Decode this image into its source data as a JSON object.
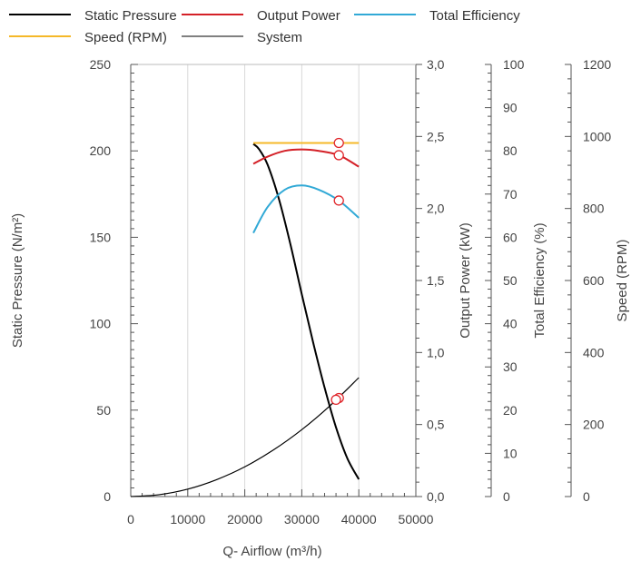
{
  "chart_data": {
    "type": "line",
    "legend": [
      {
        "label": "Static Pressure",
        "color": "#000000"
      },
      {
        "label": "Output Power",
        "color": "#d42027"
      },
      {
        "label": "Total Efficiency",
        "color": "#31a9d6"
      },
      {
        "label": "Speed (RPM)",
        "color": "#f5b829"
      },
      {
        "label": "System",
        "color": "#000000"
      }
    ],
    "legend_placement": "top",
    "grid": "vertical",
    "xlabel": "Q- Airflow (m³/h)",
    "xlim": [
      0,
      50000
    ],
    "x_ticks": [
      "0",
      "10000",
      "20000",
      "30000",
      "40000",
      "50000"
    ],
    "axes": {
      "static_pressure": {
        "label": "Static Pressure (N/m²)",
        "lim": [
          0,
          250
        ],
        "ticks": [
          "0",
          "50",
          "100",
          "150",
          "200",
          "250"
        ]
      },
      "output_power": {
        "label": "Output Power (kW)",
        "lim": [
          0,
          3
        ],
        "ticks": [
          "0,0",
          "0,5",
          "1,0",
          "1,5",
          "2,0",
          "2,5",
          "3,0"
        ]
      },
      "total_efficiency": {
        "label": "Total Efficiency (%)",
        "lim": [
          0,
          100
        ],
        "ticks": [
          "0",
          "10",
          "20",
          "30",
          "40",
          "50",
          "60",
          "70",
          "80",
          "90",
          "100"
        ]
      },
      "speed": {
        "label": "Speed (RPM)",
        "lim": [
          0,
          1200
        ],
        "ticks": [
          "0",
          "200",
          "400",
          "600",
          "800",
          "1000",
          "1200"
        ]
      }
    },
    "series": [
      {
        "name": "Static Pressure",
        "axis": "static_pressure",
        "color": "#000000",
        "x": [
          21500,
          22500,
          24000,
          26000,
          28000,
          30000,
          32000,
          34000,
          36000,
          38000,
          40000
        ],
        "y": [
          204,
          201,
          192,
          172,
          146,
          117,
          89,
          63,
          40,
          22,
          10
        ]
      },
      {
        "name": "Output Power",
        "axis": "output_power",
        "color": "#d42027",
        "x": [
          21500,
          24000,
          27000,
          30000,
          33000,
          36500,
          40000
        ],
        "y": [
          2.31,
          2.36,
          2.4,
          2.41,
          2.4,
          2.37,
          2.29
        ]
      },
      {
        "name": "Total Efficiency",
        "axis": "total_efficiency",
        "color": "#31a9d6",
        "x": [
          21500,
          24000,
          27000,
          30000,
          33000,
          36500,
          40000
        ],
        "y": [
          61,
          67,
          71,
          72,
          71,
          68.5,
          64.5
        ]
      },
      {
        "name": "Speed (RPM)",
        "axis": "speed",
        "color": "#f5b829",
        "x": [
          21500,
          40000
        ],
        "y": [
          982,
          982
        ]
      },
      {
        "name": "System",
        "axis": "static_pressure",
        "color": "#000000",
        "x": [
          0,
          5000,
          10000,
          15000,
          20000,
          25000,
          30000,
          35000,
          40000
        ],
        "y": [
          0,
          1.1,
          4.3,
          9.7,
          17.2,
          26.9,
          38.7,
          52.7,
          68.8
        ]
      }
    ],
    "operating_points": [
      {
        "x": 36500,
        "y": 57,
        "axis": "static_pressure"
      },
      {
        "x": 36000,
        "y": 56,
        "axis": "static_pressure"
      },
      {
        "x": 36500,
        "y": 2.37,
        "axis": "output_power"
      },
      {
        "x": 36500,
        "y": 68.5,
        "axis": "total_efficiency"
      },
      {
        "x": 36500,
        "y": 982,
        "axis": "speed"
      }
    ]
  }
}
